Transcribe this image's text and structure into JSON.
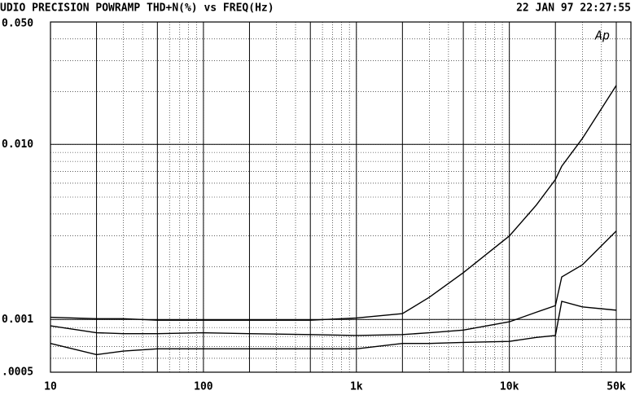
{
  "chart_data": {
    "type": "line",
    "title": "UDIO PRECISION POWRAMP THD+N(%) vs FREQ(Hz)",
    "timestamp": "22 JAN 97 22:27:55",
    "logo": "Ap",
    "x": [
      10,
      20,
      30,
      50,
      100,
      200,
      500,
      1000,
      2000,
      3000,
      5000,
      10000,
      15000,
      20000,
      22000,
      30000,
      50000
    ],
    "series": [
      {
        "color": "#000000",
        "values": [
          0.00103,
          0.00101,
          0.00101,
          0.00099,
          0.00099,
          0.00099,
          0.00099,
          0.00102,
          0.00108,
          0.00134,
          0.00185,
          0.003,
          0.0045,
          0.0063,
          0.0075,
          0.0108,
          0.0217
        ]
      },
      {
        "color": "#000000",
        "values": [
          0.00092,
          0.00084,
          0.00083,
          0.00083,
          0.00084,
          0.00083,
          0.00082,
          0.00081,
          0.00082,
          0.00084,
          0.00087,
          0.00097,
          0.0011,
          0.0012,
          0.00175,
          0.00205,
          0.0032
        ]
      },
      {
        "color": "#000000",
        "values": [
          0.00073,
          0.00063,
          0.00066,
          0.00068,
          0.00068,
          0.00068,
          0.00068,
          0.00068,
          0.00073,
          0.00073,
          0.00074,
          0.00075,
          0.00079,
          0.00081,
          0.00127,
          0.00118,
          0.00113
        ]
      }
    ],
    "xlim": [
      10,
      50000
    ],
    "ylim": [
      0.0005,
      0.05
    ],
    "xticks": [
      10,
      100,
      {
        "value": 1000,
        "label": "1k"
      },
      {
        "value": 10000,
        "label": "10k"
      },
      {
        "value": 50000,
        "label": "50k"
      }
    ],
    "yticks": [
      {
        "value": 0.0005,
        "label": ".0005"
      },
      0.001,
      {
        "value": 0.01,
        "label": "0.010"
      },
      {
        "value": 0.05,
        "label": "0.050"
      }
    ],
    "xscale": "log",
    "yscale": "log",
    "grid": true
  }
}
